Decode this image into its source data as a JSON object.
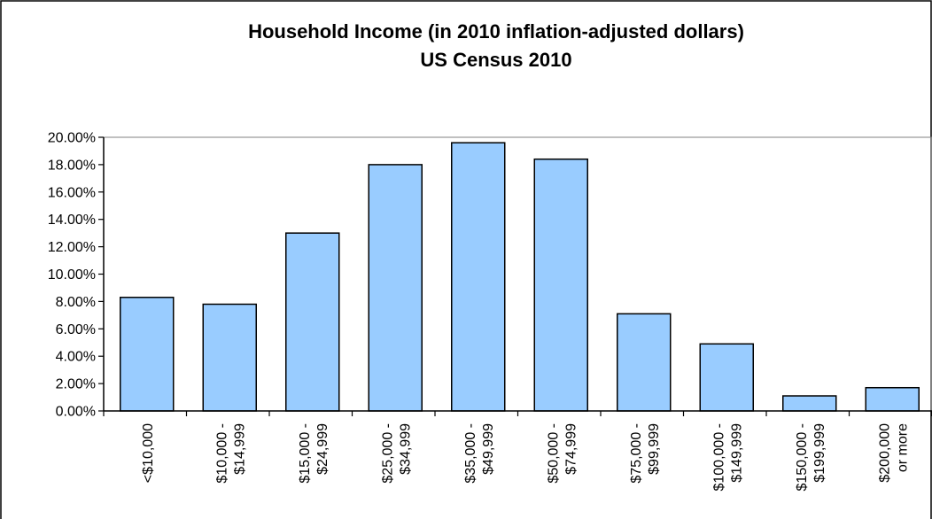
{
  "chart_data": {
    "type": "bar",
    "title": "Household Income (in 2010 inflation-adjusted dollars)",
    "subtitle": "US Census 2010",
    "xlabel": "",
    "ylabel": "",
    "ylim": [
      0,
      20
    ],
    "y_ticks": [
      "0.00%",
      "2.00%",
      "4.00%",
      "6.00%",
      "8.00%",
      "10.00%",
      "12.00%",
      "14.00%",
      "16.00%",
      "18.00%",
      "20.00%"
    ],
    "categories": [
      [
        "<$10,000"
      ],
      [
        "$10,000 -",
        "$14,999"
      ],
      [
        "$15,000 -",
        "$24,999"
      ],
      [
        "$25,000 -",
        "$34,999"
      ],
      [
        "$35,000 -",
        "$49,999"
      ],
      [
        "$50,000 -",
        "$74,999"
      ],
      [
        "$75,000 -",
        "$99,999"
      ],
      [
        "$100,000 -",
        "$149,999"
      ],
      [
        "$150,000 -",
        "$199,999"
      ],
      [
        "$200,000",
        "or more"
      ]
    ],
    "values": [
      8.3,
      7.8,
      13.0,
      18.0,
      19.6,
      18.4,
      7.1,
      4.9,
      1.1,
      1.7
    ],
    "bar_color": "#99ccff",
    "bar_border_color": "#000000",
    "grid": false,
    "legend": "none"
  }
}
